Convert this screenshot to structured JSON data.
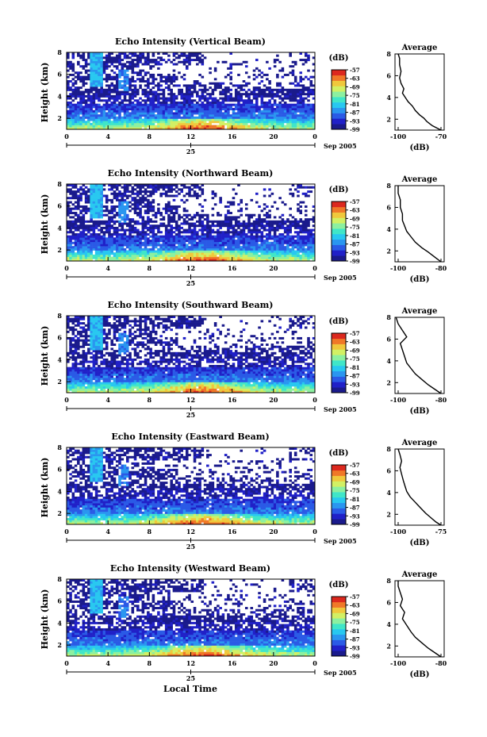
{
  "x_axis_label": "Local Time",
  "date_day": "25",
  "date_month_year": "Sep 2005",
  "colorbar_unit": "(dB)",
  "avg_title": "Average",
  "avg_xunit": "(dB)",
  "y_label": "Height (km)",
  "colors": {
    "colormap": [
      "#1a1a8c",
      "#2020c8",
      "#2a5ae6",
      "#2a96f0",
      "#28c8f0",
      "#40e6c8",
      "#8cf0a0",
      "#d2f064",
      "#f0c83c",
      "#f07828",
      "#dc281e"
    ],
    "line": "#000000",
    "background": "#ffffff"
  },
  "chart_data": [
    {
      "type": "heatmap",
      "title": "Echo Intensity (Vertical Beam)",
      "xlabel": "",
      "ylabel": "Height (km)",
      "xlim": [
        0,
        24
      ],
      "ylim": [
        1,
        8
      ],
      "xticks": [
        "0",
        "4",
        "8",
        "12",
        "16",
        "20",
        "0"
      ],
      "yticks": [
        "2",
        "4",
        "6",
        "8"
      ],
      "colorbar": {
        "label": "(dB)",
        "ticks": [
          "-57",
          "-63",
          "-69",
          "-75",
          "-81",
          "-87",
          "-93",
          "-99"
        ]
      },
      "average": {
        "title": "Average",
        "xlabel": "(dB)",
        "xlim": [
          -100,
          -70
        ],
        "xticks": [
          "-100",
          "-70"
        ],
        "yticks": [
          "2",
          "4",
          "6",
          "8"
        ],
        "profile": [
          [
            -70,
            1
          ],
          [
            -73,
            1.2
          ],
          [
            -76,
            1.4
          ],
          [
            -78,
            1.6
          ],
          [
            -80,
            1.8
          ],
          [
            -82,
            2.1
          ],
          [
            -85,
            2.4
          ],
          [
            -88,
            2.8
          ],
          [
            -90,
            3.2
          ],
          [
            -93,
            3.6
          ],
          [
            -95,
            4.0
          ],
          [
            -97,
            4.4
          ],
          [
            -96,
            4.8
          ],
          [
            -98,
            5.3
          ],
          [
            -99,
            5.8
          ],
          [
            -98,
            6.4
          ],
          [
            -99,
            7.0
          ],
          [
            -99,
            7.6
          ],
          [
            -100,
            8
          ]
        ]
      }
    },
    {
      "type": "heatmap",
      "title": "Echo Intensity (Northward Beam)",
      "xlabel": "",
      "ylabel": "Height (km)",
      "xlim": [
        0,
        24
      ],
      "ylim": [
        1,
        8
      ],
      "xticks": [
        "0",
        "4",
        "8",
        "12",
        "16",
        "20",
        "0"
      ],
      "yticks": [
        "2",
        "4",
        "6",
        "8"
      ],
      "colorbar": {
        "label": "(dB)",
        "ticks": [
          "-57",
          "-63",
          "-69",
          "-75",
          "-81",
          "-87",
          "-93",
          "-99"
        ]
      },
      "average": {
        "title": "Average",
        "xlabel": "(dB)",
        "xlim": [
          -100,
          -80
        ],
        "xticks": [
          "-100",
          "-80"
        ],
        "yticks": [
          "2",
          "4",
          "6",
          "8"
        ],
        "profile": [
          [
            -80,
            1
          ],
          [
            -82,
            1.3
          ],
          [
            -84,
            1.6
          ],
          [
            -86,
            1.9
          ],
          [
            -89,
            2.3
          ],
          [
            -92,
            2.8
          ],
          [
            -94,
            3.3
          ],
          [
            -96,
            3.8
          ],
          [
            -97,
            4.3
          ],
          [
            -98,
            4.8
          ],
          [
            -98,
            5.4
          ],
          [
            -99,
            6.0
          ],
          [
            -99,
            6.7
          ],
          [
            -100,
            7.3
          ],
          [
            -100,
            8
          ]
        ]
      }
    },
    {
      "type": "heatmap",
      "title": "Echo Intensity (Southward Beam)",
      "xlabel": "",
      "ylabel": "Height (km)",
      "xlim": [
        0,
        24
      ],
      "ylim": [
        1,
        8
      ],
      "xticks": [
        "0",
        "4",
        "8",
        "12",
        "16",
        "20",
        "0"
      ],
      "yticks": [
        "2",
        "4",
        "6",
        "8"
      ],
      "colorbar": {
        "label": "(dB)",
        "ticks": [
          "-57",
          "-63",
          "-69",
          "-75",
          "-81",
          "-87",
          "-93",
          "-99"
        ]
      },
      "average": {
        "title": "Average",
        "xlabel": "(dB)",
        "xlim": [
          -100,
          -80
        ],
        "xticks": [
          "-100",
          "-80"
        ],
        "yticks": [
          "2",
          "4",
          "6",
          "8"
        ],
        "profile": [
          [
            -80,
            1
          ],
          [
            -83,
            1.4
          ],
          [
            -86,
            1.8
          ],
          [
            -89,
            2.3
          ],
          [
            -92,
            2.8
          ],
          [
            -94,
            3.3
          ],
          [
            -96,
            3.8
          ],
          [
            -97,
            4.4
          ],
          [
            -98,
            5.0
          ],
          [
            -99,
            5.6
          ],
          [
            -96,
            6.2
          ],
          [
            -98,
            6.8
          ],
          [
            -100,
            7.4
          ],
          [
            -101,
            8
          ]
        ]
      }
    },
    {
      "type": "heatmap",
      "title": "Echo Intensity (Eastward Beam)",
      "xlabel": "",
      "ylabel": "Height (km)",
      "xlim": [
        0,
        24
      ],
      "ylim": [
        1,
        8
      ],
      "xticks": [
        "0",
        "4",
        "8",
        "12",
        "16",
        "20",
        "0"
      ],
      "yticks": [
        "2",
        "4",
        "6",
        "8"
      ],
      "colorbar": {
        "label": "(dB)",
        "ticks": [
          "-57",
          "-63",
          "-69",
          "-75",
          "-81",
          "-87",
          "-93",
          "-99"
        ]
      },
      "average": {
        "title": "Average",
        "xlabel": "(dB)",
        "xlim": [
          -100,
          -75
        ],
        "xticks": [
          "-100",
          "-75"
        ],
        "yticks": [
          "2",
          "4",
          "6",
          "8"
        ],
        "profile": [
          [
            -75,
            1
          ],
          [
            -78,
            1.3
          ],
          [
            -81,
            1.7
          ],
          [
            -84,
            2.1
          ],
          [
            -87,
            2.6
          ],
          [
            -90,
            3.1
          ],
          [
            -93,
            3.6
          ],
          [
            -95,
            4.1
          ],
          [
            -96,
            4.6
          ],
          [
            -97,
            5.1
          ],
          [
            -98,
            5.7
          ],
          [
            -99,
            6.3
          ],
          [
            -98,
            6.9
          ],
          [
            -99,
            7.5
          ],
          [
            -100,
            8
          ]
        ]
      }
    },
    {
      "type": "heatmap",
      "title": "Echo Intensity (Westward Beam)",
      "xlabel": "Local Time",
      "ylabel": "Height (km)",
      "xlim": [
        0,
        24
      ],
      "ylim": [
        1,
        8
      ],
      "xticks": [
        "0",
        "4",
        "8",
        "12",
        "16",
        "20",
        "0"
      ],
      "yticks": [
        "2",
        "4",
        "6",
        "8"
      ],
      "colorbar": {
        "label": "(dB)",
        "ticks": [
          "-57",
          "-63",
          "-69",
          "-75",
          "-81",
          "-87",
          "-93",
          "-99"
        ]
      },
      "average": {
        "title": "Average",
        "xlabel": "(dB)",
        "xlim": [
          -100,
          -80
        ],
        "xticks": [
          "-100",
          "-80"
        ],
        "yticks": [
          "2",
          "4",
          "6",
          "8"
        ],
        "profile": [
          [
            -80,
            1
          ],
          [
            -83,
            1.4
          ],
          [
            -86,
            1.8
          ],
          [
            -89,
            2.3
          ],
          [
            -92,
            2.8
          ],
          [
            -94,
            3.3
          ],
          [
            -96,
            3.9
          ],
          [
            -98,
            4.5
          ],
          [
            -97,
            5.1
          ],
          [
            -99,
            5.7
          ],
          [
            -98,
            6.3
          ],
          [
            -99,
            6.9
          ],
          [
            -100,
            7.5
          ],
          [
            -100,
            8
          ]
        ]
      }
    }
  ]
}
